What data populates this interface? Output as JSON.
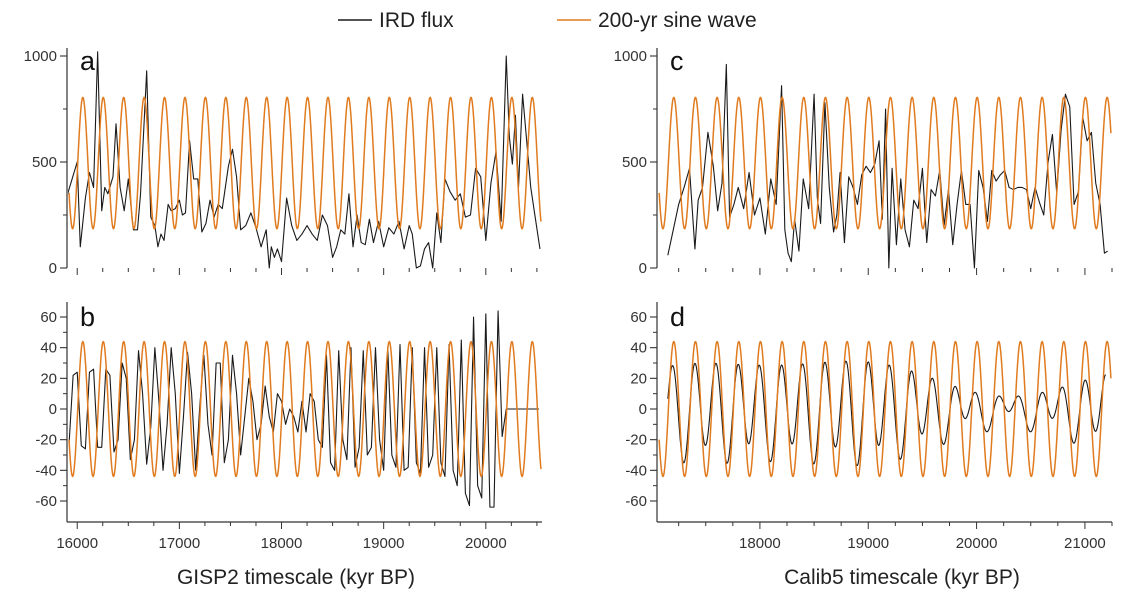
{
  "colors": {
    "ird": "#1a1a1a",
    "sine": "#e07b1f",
    "axis": "#333333"
  },
  "legend": [
    {
      "label": "IRD flux",
      "color": "#1a1a1a"
    },
    {
      "label": "200-yr sine wave",
      "color": "#e07b1f"
    }
  ],
  "xlabels": {
    "left": "GISP2 timescale (kyr BP)",
    "right": "Calib5 timescale (kyr BP)"
  },
  "chart_data": [
    {
      "panel": "a",
      "type": "line",
      "xlim": [
        15900,
        20550
      ],
      "ylim": [
        0,
        1000
      ],
      "yticks_major": [
        0,
        500,
        1000
      ],
      "xticks_labels": [],
      "series": [
        {
          "name": "IRD flux",
          "x": [
            15900,
            15950,
            16000,
            16030,
            16080,
            16120,
            16160,
            16200,
            16240,
            16270,
            16300,
            16350,
            16380,
            16420,
            16460,
            16500,
            16550,
            16590,
            16620,
            16680,
            16720,
            16760,
            16790,
            16820,
            16850,
            16890,
            16920,
            16960,
            17000,
            17030,
            17060,
            17100,
            17140,
            17180,
            17220,
            17260,
            17300,
            17340,
            17380,
            17420,
            17480,
            17520,
            17560,
            17600,
            17650,
            17700,
            17750,
            17800,
            17850,
            17880,
            17900,
            17930,
            17960,
            18000,
            18050,
            18100,
            18150,
            18200,
            18250,
            18300,
            18350,
            18400,
            18450,
            18500,
            18540,
            18580,
            18620,
            18660,
            18700,
            18740,
            18780,
            18820,
            18860,
            18900,
            18950,
            19000,
            19050,
            19100,
            19150,
            19200,
            19250,
            19280,
            19320,
            19360,
            19400,
            19440,
            19480,
            19520,
            19560,
            19600,
            19650,
            19700,
            19750,
            19800,
            19850,
            19900,
            19950,
            20000,
            20050,
            20100,
            20150,
            20200,
            20230,
            20260,
            20290,
            20320,
            20360,
            20400,
            20440,
            20480,
            20530
          ],
          "y": [
            340,
            420,
            500,
            100,
            330,
            450,
            380,
            1020,
            270,
            380,
            350,
            430,
            680,
            380,
            270,
            420,
            180,
            180,
            350,
            930,
            240,
            200,
            100,
            160,
            130,
            300,
            270,
            280,
            320,
            250,
            260,
            600,
            420,
            420,
            170,
            210,
            320,
            240,
            300,
            280,
            480,
            560,
            430,
            180,
            200,
            260,
            190,
            100,
            180,
            0,
            100,
            50,
            90,
            30,
            330,
            200,
            130,
            160,
            200,
            160,
            130,
            250,
            200,
            50,
            100,
            180,
            160,
            350,
            100,
            250,
            120,
            110,
            230,
            120,
            220,
            100,
            190,
            160,
            220,
            90,
            200,
            160,
            0,
            10,
            90,
            120,
            0,
            260,
            120,
            420,
            360,
            320,
            350,
            240,
            250,
            470,
            430,
            130,
            400,
            550,
            220,
            1000,
            620,
            490,
            720,
            380,
            820,
            600,
            380,
            250,
            90
          ]
        },
        {
          "name": "200-yr sine wave",
          "period": 200,
          "phase_peak_x": 16055,
          "amplitude": 310,
          "offset": 495
        }
      ]
    },
    {
      "panel": "b",
      "type": "line",
      "xlim": [
        15900,
        20550
      ],
      "ylim": [
        -70,
        70
      ],
      "yticks_major": [
        -60,
        -40,
        -20,
        0,
        20,
        40,
        60
      ],
      "xticks_labels": [
        16000,
        17000,
        18000,
        19000,
        20000
      ],
      "series": [
        {
          "name": "IRD flux",
          "x": [
            15920,
            15960,
            16000,
            16040,
            16080,
            16120,
            16160,
            16200,
            16240,
            16280,
            16320,
            16360,
            16400,
            16440,
            16480,
            16520,
            16560,
            16600,
            16640,
            16680,
            16720,
            16760,
            16800,
            16840,
            16880,
            16920,
            16960,
            17000,
            17040,
            17080,
            17120,
            17160,
            17200,
            17240,
            17280,
            17320,
            17360,
            17400,
            17440,
            17480,
            17520,
            17560,
            17600,
            17640,
            17680,
            17720,
            17760,
            17800,
            17840,
            17880,
            17920,
            17960,
            18000,
            18040,
            18080,
            18120,
            18160,
            18200,
            18240,
            18280,
            18320,
            18360,
            18400,
            18440,
            18480,
            18520,
            18560,
            18600,
            18640,
            18680,
            18720,
            18760,
            18800,
            18840,
            18880,
            18920,
            18960,
            19000,
            19040,
            19080,
            19120,
            19160,
            19200,
            19240,
            19280,
            19320,
            19360,
            19400,
            19440,
            19480,
            19520,
            19560,
            19600,
            19640,
            19680,
            19720,
            19760,
            19800,
            19840,
            19880,
            19920,
            19960,
            20000,
            20040,
            20080,
            20120,
            20160,
            20200,
            20240,
            20280,
            20320,
            20360,
            20400,
            20440,
            20480,
            20520
          ],
          "y": [
            -23,
            22,
            24,
            -24,
            -26,
            24,
            26,
            -25,
            -25,
            26,
            22,
            -28,
            -20,
            30,
            20,
            -33,
            -20,
            38,
            10,
            -36,
            -12,
            40,
            5,
            -40,
            -10,
            40,
            10,
            -42,
            -5,
            37,
            10,
            -40,
            2,
            35,
            -10,
            -30,
            30,
            30,
            -35,
            -20,
            35,
            10,
            -30,
            -5,
            20,
            5,
            -20,
            -10,
            15,
            -5,
            -15,
            10,
            5,
            -10,
            0,
            -5,
            -15,
            5,
            -15,
            10,
            5,
            -20,
            -25,
            35,
            -35,
            -40,
            38,
            -20,
            -33,
            40,
            -38,
            -25,
            38,
            -30,
            -25,
            40,
            -20,
            -40,
            40,
            -30,
            -38,
            42,
            -40,
            -38,
            40,
            -35,
            -42,
            40,
            -38,
            -30,
            40,
            -35,
            -44,
            42,
            -40,
            -50,
            45,
            -55,
            -63,
            60,
            -50,
            -58,
            62,
            -64,
            -64,
            64,
            -18,
            0,
            0,
            0,
            0,
            0,
            0,
            0,
            0,
            0
          ]
        },
        {
          "name": "200-yr sine wave",
          "period": 200,
          "phase_peak_x": 16055,
          "amplitude": 44,
          "offset": 0
        }
      ]
    },
    {
      "panel": "c",
      "type": "line",
      "xlim": [
        17050,
        21250
      ],
      "ylim": [
        0,
        1000
      ],
      "yticks_major": [
        0,
        500,
        1000
      ],
      "xticks_labels": [],
      "series": [
        {
          "name": "IRD flux",
          "x": [
            17150,
            17200,
            17250,
            17300,
            17350,
            17400,
            17430,
            17470,
            17520,
            17570,
            17610,
            17650,
            17690,
            17720,
            17760,
            17800,
            17850,
            17900,
            17950,
            18000,
            18050,
            18100,
            18150,
            18200,
            18230,
            18260,
            18290,
            18320,
            18360,
            18400,
            18450,
            18500,
            18530,
            18560,
            18600,
            18640,
            18680,
            18710,
            18740,
            18780,
            18820,
            18860,
            18900,
            18940,
            18980,
            19020,
            19060,
            19100,
            19130,
            19160,
            19190,
            19220,
            19260,
            19300,
            19340,
            19380,
            19420,
            19460,
            19500,
            19540,
            19580,
            19620,
            19660,
            19700,
            19740,
            19780,
            19820,
            19860,
            19900,
            19940,
            19980,
            20020,
            20060,
            20100,
            20140,
            20180,
            20220,
            20260,
            20300,
            20340,
            20380,
            20420,
            20460,
            20500,
            20540,
            20580,
            20620,
            20660,
            20700,
            20740,
            20780,
            20820,
            20860,
            20900,
            20940,
            20980,
            21020,
            21060,
            21100,
            21140,
            21180,
            21210
          ],
          "y": [
            60,
            180,
            300,
            380,
            470,
            90,
            320,
            380,
            640,
            480,
            270,
            400,
            960,
            240,
            300,
            380,
            280,
            450,
            250,
            330,
            160,
            420,
            300,
            860,
            180,
            70,
            30,
            230,
            80,
            420,
            280,
            820,
            330,
            210,
            780,
            380,
            170,
            250,
            450,
            120,
            430,
            380,
            300,
            440,
            480,
            450,
            490,
            600,
            230,
            750,
            0,
            470,
            110,
            420,
            180,
            100,
            320,
            280,
            470,
            120,
            370,
            340,
            460,
            200,
            370,
            110,
            300,
            460,
            300,
            300,
            0,
            460,
            380,
            220,
            460,
            410,
            440,
            460,
            380,
            370,
            380,
            380,
            370,
            280,
            380,
            310,
            250,
            500,
            630,
            350,
            650,
            820,
            760,
            300,
            360,
            710,
            600,
            640,
            400,
            300,
            70,
            80
          ]
        },
        {
          "name": "200-yr sine wave",
          "period": 200,
          "phase_peak_x": 17205,
          "amplitude": 310,
          "offset": 495
        }
      ]
    },
    {
      "panel": "d",
      "type": "line",
      "xlim": [
        17050,
        21250
      ],
      "ylim": [
        -70,
        70
      ],
      "yticks_major": [
        -60,
        -40,
        -20,
        0,
        20,
        40,
        60
      ],
      "xticks_labels": [
        18000,
        19000,
        20000,
        21000
      ],
      "series": [
        {
          "name": "IRD flux",
          "period": 200,
          "phase_peak_x": 17205,
          "amplitude": 30,
          "offset": 0,
          "envelope": "varying"
        },
        {
          "name": "200-yr sine wave",
          "period": 200,
          "phase_peak_x": 17205,
          "amplitude": 44,
          "offset": 0
        }
      ]
    }
  ]
}
